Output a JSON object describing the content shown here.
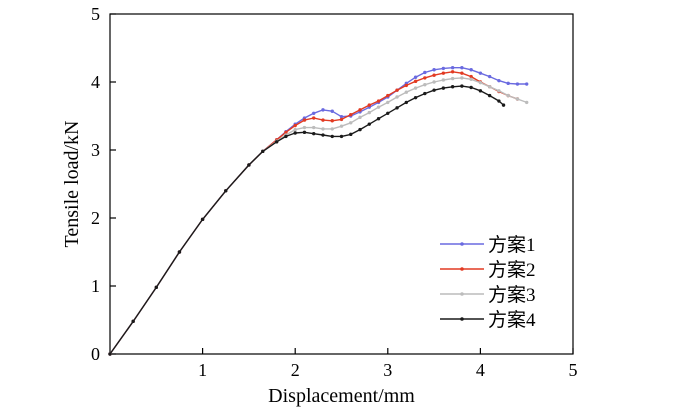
{
  "chart_data": {
    "type": "line",
    "title": "",
    "xlabel": "Displacement/mm",
    "ylabel": "Tensile load/kN",
    "xlim": [
      0,
      5
    ],
    "ylim": [
      0,
      5
    ],
    "xticks": [
      "1",
      "2",
      "3",
      "4",
      "5"
    ],
    "yticks": [
      "0",
      "1",
      "2",
      "3",
      "4",
      "5"
    ],
    "grid": false,
    "legend_position": "bottom-right",
    "series": [
      {
        "name": "方案1",
        "color": "#6a6ae0",
        "marker": "dot",
        "x": [
          0,
          0.25,
          0.5,
          0.75,
          1.0,
          1.25,
          1.5,
          1.65,
          1.8,
          1.9,
          2.0,
          2.1,
          2.2,
          2.3,
          2.4,
          2.5,
          2.6,
          2.7,
          2.8,
          2.9,
          3.0,
          3.1,
          3.2,
          3.3,
          3.4,
          3.5,
          3.6,
          3.7,
          3.8,
          3.9,
          4.0,
          4.1,
          4.2,
          4.3,
          4.4,
          4.5
        ],
        "y": [
          0,
          0.48,
          0.98,
          1.5,
          1.98,
          2.4,
          2.78,
          2.98,
          3.15,
          3.27,
          3.38,
          3.47,
          3.54,
          3.59,
          3.57,
          3.49,
          3.5,
          3.56,
          3.63,
          3.7,
          3.78,
          3.88,
          3.98,
          4.07,
          4.14,
          4.18,
          4.2,
          4.21,
          4.21,
          4.18,
          4.13,
          4.08,
          4.02,
          3.98,
          3.97,
          3.97
        ]
      },
      {
        "name": "方案2",
        "color": "#e23a22",
        "marker": "dot",
        "x": [
          0,
          0.25,
          0.5,
          0.75,
          1.0,
          1.25,
          1.5,
          1.65,
          1.8,
          1.9,
          2.0,
          2.1,
          2.2,
          2.3,
          2.4,
          2.5,
          2.6,
          2.7,
          2.8,
          2.9,
          3.0,
          3.1,
          3.2,
          3.3,
          3.4,
          3.5,
          3.6,
          3.7,
          3.8,
          3.9,
          4.0,
          4.1,
          4.2,
          4.3,
          4.4
        ],
        "y": [
          0,
          0.48,
          0.98,
          1.5,
          1.98,
          2.4,
          2.78,
          2.98,
          3.15,
          3.26,
          3.36,
          3.44,
          3.47,
          3.44,
          3.43,
          3.45,
          3.52,
          3.59,
          3.66,
          3.72,
          3.8,
          3.88,
          3.95,
          4.01,
          4.06,
          4.1,
          4.13,
          4.15,
          4.13,
          4.08,
          4.0,
          3.93,
          3.86,
          3.8,
          3.75
        ]
      },
      {
        "name": "方案3",
        "color": "#bcbcbc",
        "marker": "dot",
        "x": [
          0,
          0.25,
          0.5,
          0.75,
          1.0,
          1.25,
          1.5,
          1.65,
          1.8,
          1.9,
          2.0,
          2.1,
          2.2,
          2.3,
          2.4,
          2.5,
          2.6,
          2.7,
          2.8,
          2.9,
          3.0,
          3.1,
          3.2,
          3.3,
          3.4,
          3.5,
          3.6,
          3.7,
          3.8,
          3.9,
          4.0,
          4.1,
          4.2,
          4.3,
          4.4,
          4.5
        ],
        "y": [
          0,
          0.48,
          0.98,
          1.5,
          1.98,
          2.4,
          2.78,
          2.98,
          3.13,
          3.22,
          3.3,
          3.33,
          3.33,
          3.31,
          3.31,
          3.35,
          3.4,
          3.48,
          3.55,
          3.63,
          3.7,
          3.78,
          3.85,
          3.91,
          3.96,
          4.0,
          4.03,
          4.05,
          4.06,
          4.04,
          3.99,
          3.93,
          3.87,
          3.8,
          3.75,
          3.7
        ]
      },
      {
        "name": "方案4",
        "color": "#1a1a1a",
        "marker": "dot",
        "x": [
          0,
          0.25,
          0.5,
          0.75,
          1.0,
          1.25,
          1.5,
          1.65,
          1.8,
          1.9,
          2.0,
          2.1,
          2.2,
          2.3,
          2.4,
          2.5,
          2.6,
          2.7,
          2.8,
          2.9,
          3.0,
          3.1,
          3.2,
          3.3,
          3.4,
          3.5,
          3.6,
          3.7,
          3.8,
          3.9,
          4.0,
          4.1,
          4.2,
          4.25
        ],
        "y": [
          0,
          0.48,
          0.98,
          1.5,
          1.98,
          2.4,
          2.78,
          2.98,
          3.12,
          3.2,
          3.25,
          3.26,
          3.24,
          3.22,
          3.2,
          3.2,
          3.23,
          3.3,
          3.38,
          3.46,
          3.54,
          3.62,
          3.7,
          3.77,
          3.83,
          3.88,
          3.91,
          3.93,
          3.94,
          3.92,
          3.87,
          3.8,
          3.72,
          3.66
        ]
      }
    ]
  }
}
